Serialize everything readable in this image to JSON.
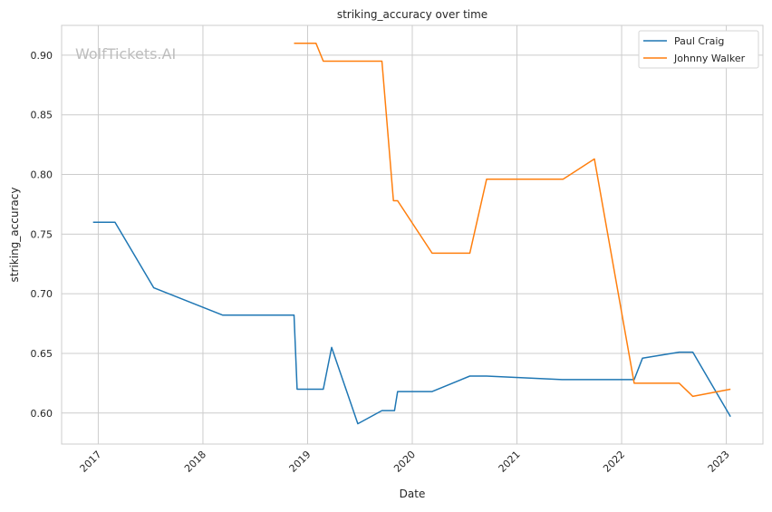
{
  "chart_data": {
    "type": "line",
    "title": "striking_accuracy over time",
    "xlabel": "Date",
    "ylabel": "striking_accuracy",
    "xlim": [
      2016.65,
      2023.35
    ],
    "ylim": [
      0.574,
      0.925
    ],
    "xticks": [
      2017,
      2018,
      2019,
      2020,
      2021,
      2022,
      2023
    ],
    "xtick_labels": [
      "2017",
      "2018",
      "2019",
      "2020",
      "2021",
      "2022",
      "2023"
    ],
    "yticks": [
      0.6,
      0.65,
      0.7,
      0.75,
      0.8,
      0.85,
      0.9
    ],
    "ytick_labels": [
      "0.60",
      "0.65",
      "0.70",
      "0.75",
      "0.80",
      "0.85",
      "0.90"
    ],
    "grid": true,
    "legend_position": "top-right",
    "watermark": "WolfTickets.AI",
    "series": [
      {
        "name": "Paul Craig",
        "color": "#1f77b4",
        "x": [
          2016.95,
          2017.16,
          2017.53,
          2018.19,
          2018.87,
          2018.9,
          2019.15,
          2019.23,
          2019.48,
          2019.71,
          2019.83,
          2019.86,
          2020.19,
          2020.55,
          2020.71,
          2021.43,
          2022.12,
          2022.2,
          2022.55,
          2022.68,
          2023.04
        ],
        "y": [
          0.76,
          0.76,
          0.705,
          0.682,
          0.682,
          0.62,
          0.62,
          0.655,
          0.591,
          0.602,
          0.602,
          0.618,
          0.618,
          0.631,
          0.631,
          0.628,
          0.628,
          0.646,
          0.651,
          0.651,
          0.597
        ]
      },
      {
        "name": "Johnny Walker",
        "color": "#ff7f0e",
        "x": [
          2018.87,
          2019.08,
          2019.15,
          2019.71,
          2019.82,
          2019.86,
          2020.19,
          2020.55,
          2020.71,
          2021.44,
          2021.74,
          2022.12,
          2022.55,
          2022.68,
          2023.04
        ],
        "y": [
          0.91,
          0.91,
          0.895,
          0.895,
          0.778,
          0.778,
          0.734,
          0.734,
          0.796,
          0.796,
          0.813,
          0.625,
          0.625,
          0.614,
          0.62
        ]
      }
    ]
  }
}
